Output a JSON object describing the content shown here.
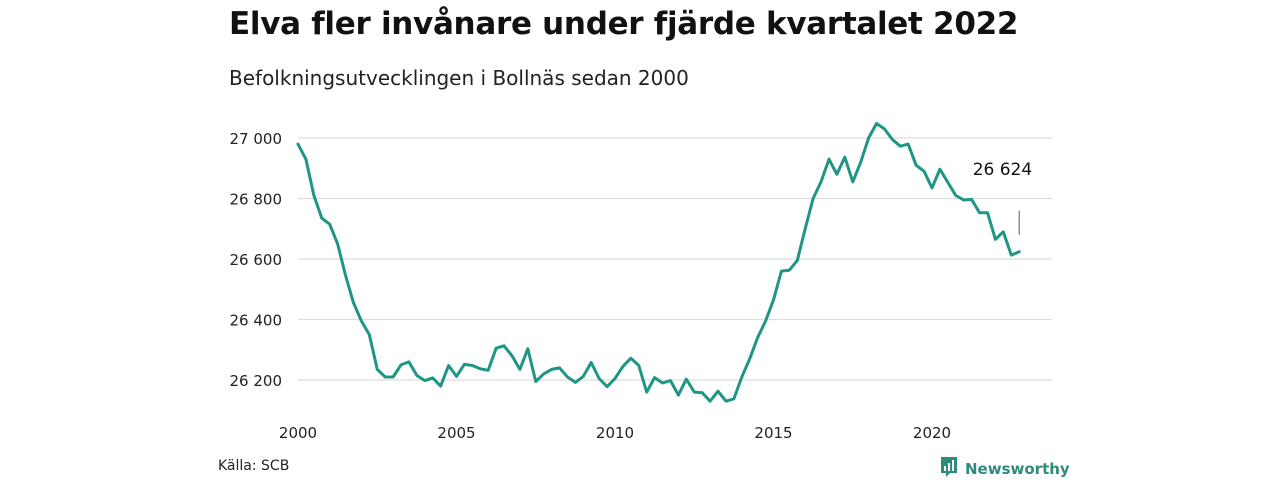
{
  "title": "Elva fler invånare under fjärde kvartalet 2022",
  "subtitle": "Befolkningsutvecklingen i Bollnäs sedan 2000",
  "source": "Källa: SCB",
  "brand": {
    "name": "Newsworthy",
    "icon": "newsworthy-logo-icon"
  },
  "colors": {
    "line": "#1e9683",
    "grid": "#dedede",
    "brand": "#2e8b7a"
  },
  "chart_data": {
    "type": "line",
    "title": "Elva fler invånare under fjärde kvartalet 2022",
    "subtitle": "Befolkningsutvecklingen i Bollnäs sedan 2000",
    "xlabel": "",
    "ylabel": "",
    "xlim": [
      2000,
      2023.5
    ],
    "ylim": [
      26100,
      27050
    ],
    "grid": true,
    "x_ticks": [
      2000,
      2005,
      2010,
      2015,
      2020
    ],
    "x_tick_labels": [
      "2000",
      "2005",
      "2010",
      "2015",
      "2020"
    ],
    "y_ticks": [
      26200,
      26400,
      26600,
      26800,
      27000
    ],
    "y_tick_labels": [
      "26 200",
      "26 400",
      "26 600",
      "26 800",
      "27 000"
    ],
    "annotation": {
      "text": "26 624",
      "x": 2022.75,
      "y": 26624
    },
    "series": [
      {
        "quarters": [
          "2000 K1",
          "2000 K2",
          "2000 K3",
          "2000 K4",
          "2001 K1",
          "2001 K2",
          "2001 K3",
          "2001 K4",
          "2002 K1",
          "2002 K2",
          "2002 K3",
          "2002 K4",
          "2003 K1",
          "2003 K2",
          "2003 K3",
          "2003 K4",
          "2004 K1",
          "2004 K2",
          "2004 K3",
          "2004 K4",
          "2005 K1",
          "2005 K2",
          "2005 K3",
          "2005 K4",
          "2006 K1",
          "2006 K2",
          "2006 K3",
          "2006 K4",
          "2007 K1",
          "2007 K2",
          "2007 K3",
          "2007 K4",
          "2008 K1",
          "2008 K2",
          "2008 K3",
          "2008 K4",
          "2009 K1",
          "2009 K2",
          "2009 K3",
          "2009 K4",
          "2010 K1",
          "2010 K2",
          "2010 K3",
          "2010 K4",
          "2011 K1",
          "2011 K2",
          "2011 K3",
          "2011 K4",
          "2012 K1",
          "2012 K2",
          "2012 K3",
          "2012 K4",
          "2013 K1",
          "2013 K2",
          "2013 K3",
          "2013 K4",
          "2014 K1",
          "2014 K2",
          "2014 K3",
          "2014 K4",
          "2015 K1",
          "2015 K2",
          "2015 K3",
          "2015 K4",
          "2016 K1",
          "2016 K2",
          "2016 K3",
          "2016 K4",
          "2017 K1",
          "2017 K2",
          "2017 K3",
          "2017 K4",
          "2018 K1",
          "2018 K2",
          "2018 K3",
          "2018 K4",
          "2019 K1",
          "2019 K2",
          "2019 K3",
          "2019 K4",
          "2020 K1",
          "2020 K2",
          "2020 K3",
          "2020 K4",
          "2021 K1",
          "2021 K2",
          "2021 K3",
          "2021 K4",
          "2022 K1",
          "2022 K2",
          "2022 K3",
          "2022 K4"
        ],
        "x": [
          2000.0,
          2000.25,
          2000.5,
          2000.75,
          2001.0,
          2001.25,
          2001.5,
          2001.75,
          2002.0,
          2002.25,
          2002.5,
          2002.75,
          2003.0,
          2003.25,
          2003.5,
          2003.75,
          2004.0,
          2004.25,
          2004.5,
          2004.75,
          2005.0,
          2005.25,
          2005.5,
          2005.75,
          2006.0,
          2006.25,
          2006.5,
          2006.75,
          2007.0,
          2007.25,
          2007.5,
          2007.75,
          2008.0,
          2008.25,
          2008.5,
          2008.75,
          2009.0,
          2009.25,
          2009.5,
          2009.75,
          2010.0,
          2010.25,
          2010.5,
          2010.75,
          2011.0,
          2011.25,
          2011.5,
          2011.75,
          2012.0,
          2012.25,
          2012.5,
          2012.75,
          2013.0,
          2013.25,
          2013.5,
          2013.75,
          2014.0,
          2014.25,
          2014.5,
          2014.75,
          2015.0,
          2015.25,
          2015.5,
          2015.75,
          2016.0,
          2016.25,
          2016.5,
          2016.75,
          2017.0,
          2017.25,
          2017.5,
          2017.75,
          2018.0,
          2018.25,
          2018.5,
          2018.75,
          2019.0,
          2019.25,
          2019.5,
          2019.75,
          2020.0,
          2020.25,
          2020.5,
          2020.75,
          2021.0,
          2021.25,
          2021.5,
          2021.75,
          2022.0,
          2022.25,
          2022.5,
          2022.75
        ],
        "values": [
          26980,
          26930,
          26810,
          26735,
          26715,
          26650,
          26545,
          26455,
          26395,
          26350,
          26235,
          26210,
          26210,
          26250,
          26260,
          26215,
          26198,
          26207,
          26180,
          26248,
          26212,
          26252,
          26248,
          26237,
          26232,
          26305,
          26313,
          26280,
          26235,
          26303,
          26195,
          26220,
          26235,
          26240,
          26210,
          26192,
          26212,
          26258,
          26205,
          26178,
          26205,
          26245,
          26272,
          26248,
          26160,
          26208,
          26190,
          26198,
          26150,
          26203,
          26160,
          26158,
          26130,
          26163,
          26130,
          26138,
          26210,
          26270,
          26340,
          26395,
          26465,
          26560,
          26563,
          26595,
          26700,
          26800,
          26855,
          26930,
          26880,
          26937,
          26855,
          26920,
          27000,
          27048,
          27030,
          26995,
          26973,
          26980,
          26910,
          26890,
          26835,
          26897,
          26853,
          26810,
          26795,
          26797,
          26753,
          26753,
          26665,
          26690,
          26613,
          26624
        ]
      }
    ]
  }
}
